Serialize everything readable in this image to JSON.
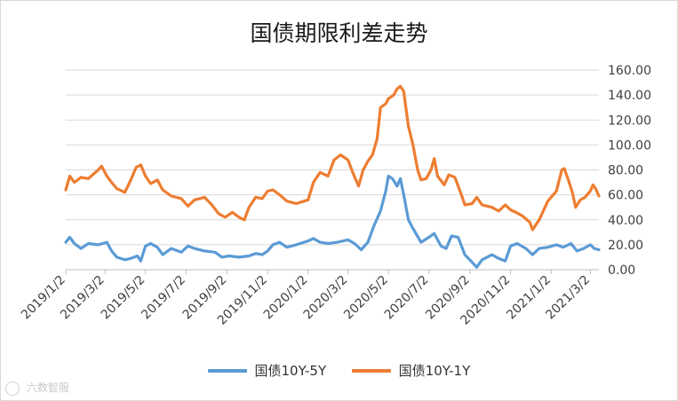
{
  "chart_data": {
    "type": "line",
    "title": "国债期限利差走势",
    "xlabel": "",
    "ylabel": "",
    "ylim": [
      0,
      160
    ],
    "y_ticks": [
      "0.00",
      "20.00",
      "40.00",
      "60.00",
      "80.00",
      "100.00",
      "120.00",
      "140.00",
      "160.00"
    ],
    "y_axis_position": "right",
    "grid": true,
    "legend_position": "bottom",
    "x_ticks": [
      "2019/1/2",
      "2019/3/2",
      "2019/5/2",
      "2019/7/2",
      "2019/9/2",
      "2019/11/2",
      "2020/1/2",
      "2020/3/2",
      "2020/5/2",
      "2020/7/2",
      "2020/9/2",
      "2020/11/2",
      "2021/1/2",
      "2021/3/2"
    ],
    "x_range": [
      "2019/1/2",
      "2021/3/15"
    ],
    "series": [
      {
        "name": "国债10Y-5Y",
        "color": "#5b9bd5",
        "points": [
          [
            "2019/1/2",
            22
          ],
          [
            "2019/1/8",
            26
          ],
          [
            "2019/1/15",
            21
          ],
          [
            "2019/1/25",
            17
          ],
          [
            "2019/2/5",
            21
          ],
          [
            "2019/2/20",
            20
          ],
          [
            "2019/3/5",
            22
          ],
          [
            "2019/3/12",
            15
          ],
          [
            "2019/3/20",
            10
          ],
          [
            "2019/4/1",
            8
          ],
          [
            "2019/4/10",
            9
          ],
          [
            "2019/4/20",
            11
          ],
          [
            "2019/4/25",
            7
          ],
          [
            "2019/5/2",
            19
          ],
          [
            "2019/5/10",
            21
          ],
          [
            "2019/5/20",
            18
          ],
          [
            "2019/5/28",
            12
          ],
          [
            "2019/6/10",
            17
          ],
          [
            "2019/6/25",
            14
          ],
          [
            "2019/7/5",
            19
          ],
          [
            "2019/7/15",
            17
          ],
          [
            "2019/7/30",
            15
          ],
          [
            "2019/8/15",
            14
          ],
          [
            "2019/8/25",
            10
          ],
          [
            "2019/9/5",
            11
          ],
          [
            "2019/9/20",
            10
          ],
          [
            "2019/10/5",
            11
          ],
          [
            "2019/10/15",
            13
          ],
          [
            "2019/10/25",
            12
          ],
          [
            "2019/11/2",
            15
          ],
          [
            "2019/11/10",
            20
          ],
          [
            "2019/11/20",
            22
          ],
          [
            "2019/12/1",
            18
          ],
          [
            "2019/12/15",
            20
          ],
          [
            "2020/1/2",
            23
          ],
          [
            "2020/1/10",
            25
          ],
          [
            "2020/1/20",
            22
          ],
          [
            "2020/2/1",
            21
          ],
          [
            "2020/2/15",
            22
          ],
          [
            "2020/3/2",
            24
          ],
          [
            "2020/3/12",
            21
          ],
          [
            "2020/3/22",
            16
          ],
          [
            "2020/4/1",
            22
          ],
          [
            "2020/4/10",
            35
          ],
          [
            "2020/4/20",
            47
          ],
          [
            "2020/4/28",
            63
          ],
          [
            "2020/5/2",
            75
          ],
          [
            "2020/5/8",
            73
          ],
          [
            "2020/5/15",
            67
          ],
          [
            "2020/5/20",
            73
          ],
          [
            "2020/5/25",
            60
          ],
          [
            "2020/6/1",
            40
          ],
          [
            "2020/6/8",
            33
          ],
          [
            "2020/6/20",
            22
          ],
          [
            "2020/7/2",
            26
          ],
          [
            "2020/7/10",
            29
          ],
          [
            "2020/7/20",
            19
          ],
          [
            "2020/7/28",
            17
          ],
          [
            "2020/8/5",
            27
          ],
          [
            "2020/8/15",
            26
          ],
          [
            "2020/8/25",
            12
          ],
          [
            "2020/9/5",
            6
          ],
          [
            "2020/9/12",
            2
          ],
          [
            "2020/9/20",
            8
          ],
          [
            "2020/10/5",
            12
          ],
          [
            "2020/10/15",
            9
          ],
          [
            "2020/10/25",
            7
          ],
          [
            "2020/11/2",
            19
          ],
          [
            "2020/11/12",
            21
          ],
          [
            "2020/11/25",
            17
          ],
          [
            "2020/12/5",
            12
          ],
          [
            "2020/12/15",
            17
          ],
          [
            "2020/12/28",
            18
          ],
          [
            "2021/1/10",
            20
          ],
          [
            "2021/1/20",
            18
          ],
          [
            "2021/2/1",
            21
          ],
          [
            "2021/2/10",
            15
          ],
          [
            "2021/2/20",
            17
          ],
          [
            "2021/3/2",
            20
          ],
          [
            "2021/3/8",
            17
          ],
          [
            "2021/3/15",
            16
          ]
        ]
      },
      {
        "name": "国债10Y-1Y",
        "color": "#ed7d31",
        "points": [
          [
            "2019/1/2",
            64
          ],
          [
            "2019/1/8",
            75
          ],
          [
            "2019/1/15",
            70
          ],
          [
            "2019/1/25",
            74
          ],
          [
            "2019/2/5",
            73
          ],
          [
            "2019/2/20",
            80
          ],
          [
            "2019/2/25",
            83
          ],
          [
            "2019/3/5",
            75
          ],
          [
            "2019/3/12",
            70
          ],
          [
            "2019/3/20",
            65
          ],
          [
            "2019/4/1",
            62
          ],
          [
            "2019/4/10",
            72
          ],
          [
            "2019/4/18",
            82
          ],
          [
            "2019/4/25",
            84
          ],
          [
            "2019/5/2",
            75
          ],
          [
            "2019/5/10",
            69
          ],
          [
            "2019/5/20",
            72
          ],
          [
            "2019/5/28",
            64
          ],
          [
            "2019/6/10",
            59
          ],
          [
            "2019/6/25",
            57
          ],
          [
            "2019/7/5",
            51
          ],
          [
            "2019/7/15",
            56
          ],
          [
            "2019/7/30",
            58
          ],
          [
            "2019/8/10",
            52
          ],
          [
            "2019/8/20",
            45
          ],
          [
            "2019/8/30",
            42
          ],
          [
            "2019/9/10",
            46
          ],
          [
            "2019/9/20",
            42
          ],
          [
            "2019/9/28",
            40
          ],
          [
            "2019/10/5",
            50
          ],
          [
            "2019/10/15",
            58
          ],
          [
            "2019/10/25",
            57
          ],
          [
            "2019/11/2",
            63
          ],
          [
            "2019/11/10",
            64
          ],
          [
            "2019/11/20",
            60
          ],
          [
            "2019/12/1",
            55
          ],
          [
            "2019/12/15",
            53
          ],
          [
            "2020/1/2",
            56
          ],
          [
            "2020/1/10",
            70
          ],
          [
            "2020/1/20",
            78
          ],
          [
            "2020/2/1",
            75
          ],
          [
            "2020/2/10",
            88
          ],
          [
            "2020/2/20",
            92
          ],
          [
            "2020/3/2",
            88
          ],
          [
            "2020/3/10",
            77
          ],
          [
            "2020/3/18",
            67
          ],
          [
            "2020/3/25",
            80
          ],
          [
            "2020/4/1",
            87
          ],
          [
            "2020/4/8",
            92
          ],
          [
            "2020/4/15",
            105
          ],
          [
            "2020/4/20",
            130
          ],
          [
            "2020/4/28",
            133
          ],
          [
            "2020/5/2",
            137
          ],
          [
            "2020/5/10",
            140
          ],
          [
            "2020/5/15",
            145
          ],
          [
            "2020/5/20",
            147
          ],
          [
            "2020/5/25",
            143
          ],
          [
            "2020/6/1",
            115
          ],
          [
            "2020/6/8",
            100
          ],
          [
            "2020/6/15",
            80
          ],
          [
            "2020/6/20",
            72
          ],
          [
            "2020/6/28",
            73
          ],
          [
            "2020/7/5",
            80
          ],
          [
            "2020/7/10",
            89
          ],
          [
            "2020/7/15",
            75
          ],
          [
            "2020/7/25",
            68
          ],
          [
            "2020/8/1",
            76
          ],
          [
            "2020/8/10",
            74
          ],
          [
            "2020/8/20",
            60
          ],
          [
            "2020/8/25",
            52
          ],
          [
            "2020/9/5",
            53
          ],
          [
            "2020/9/12",
            58
          ],
          [
            "2020/9/20",
            52
          ],
          [
            "2020/10/5",
            50
          ],
          [
            "2020/10/15",
            47
          ],
          [
            "2020/10/25",
            52
          ],
          [
            "2020/11/2",
            48
          ],
          [
            "2020/11/10",
            46
          ],
          [
            "2020/11/20",
            43
          ],
          [
            "2020/12/1",
            38
          ],
          [
            "2020/12/5",
            32
          ],
          [
            "2020/12/15",
            40
          ],
          [
            "2020/12/28",
            55
          ],
          [
            "2021/1/10",
            63
          ],
          [
            "2021/1/18",
            80
          ],
          [
            "2021/1/22",
            81
          ],
          [
            "2021/1/28",
            72
          ],
          [
            "2021/2/3",
            62
          ],
          [
            "2021/2/8",
            50
          ],
          [
            "2021/2/15",
            56
          ],
          [
            "2021/2/22",
            58
          ],
          [
            "2021/3/2",
            63
          ],
          [
            "2021/3/6",
            68
          ],
          [
            "2021/3/10",
            65
          ],
          [
            "2021/3/15",
            59
          ]
        ]
      }
    ]
  },
  "legend": [
    {
      "label": "国债10Y-5Y",
      "color": "#5b9bd5"
    },
    {
      "label": "国债10Y-1Y",
      "color": "#ed7d31"
    }
  ],
  "watermark": "六数智服"
}
